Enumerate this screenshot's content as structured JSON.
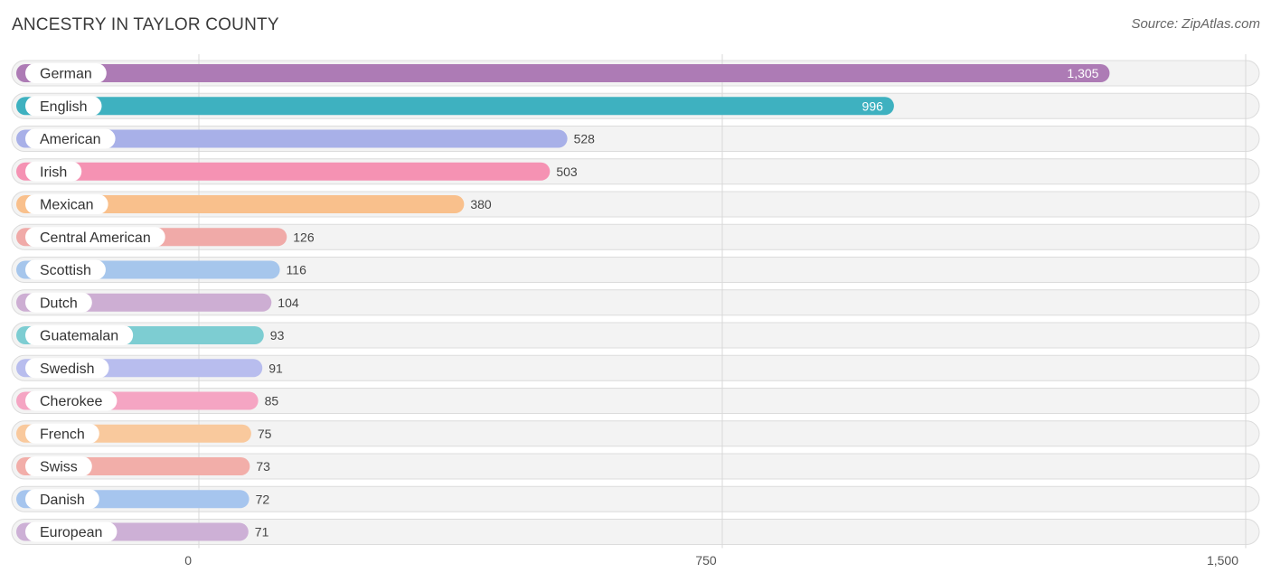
{
  "title": "ANCESTRY IN TAYLOR COUNTY",
  "source": "Source: ZipAtlas.com",
  "chart_data": {
    "type": "bar",
    "orientation": "horizontal",
    "title": "ANCESTRY IN TAYLOR COUNTY",
    "xlim": [
      0,
      1500
    ],
    "ticks": [
      {
        "value": 0,
        "label": "0"
      },
      {
        "value": 750,
        "label": "750"
      },
      {
        "value": 1500,
        "label": "1,500"
      }
    ],
    "grid": true,
    "categories": [
      "German",
      "English",
      "American",
      "Irish",
      "Mexican",
      "Central American",
      "Scottish",
      "Dutch",
      "Guatemalan",
      "Swedish",
      "Cherokee",
      "French",
      "Swiss",
      "Danish",
      "European"
    ],
    "values": [
      1305,
      996,
      528,
      503,
      380,
      126,
      116,
      104,
      93,
      91,
      85,
      75,
      73,
      72,
      71
    ],
    "value_labels": [
      "1,305",
      "996",
      "528",
      "503",
      "380",
      "126",
      "116",
      "104",
      "93",
      "91",
      "85",
      "75",
      "73",
      "72",
      "71"
    ],
    "colors": [
      "#ad7bb5",
      "#3eb1c0",
      "#a8b0e8",
      "#f592b3",
      "#f9c08c",
      "#f0aaa8",
      "#a6c6ec",
      "#cdaed3",
      "#7dcdd2",
      "#b8bdee",
      "#f5a5c3",
      "#f9c99d",
      "#f2aea9",
      "#a6c5ee",
      "#cdb0d6"
    ]
  }
}
